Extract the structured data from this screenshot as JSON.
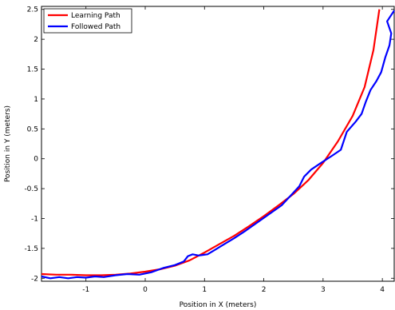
{
  "chart_data": {
    "type": "line",
    "xlabel": "Position in X (meters)",
    "ylabel": "Position in Y (meters)",
    "xlim": [
      -1.75,
      4.2
    ],
    "ylim": [
      -2.05,
      2.55
    ],
    "x_ticks": [
      -1,
      0,
      1,
      2,
      3,
      4
    ],
    "y_ticks": [
      -2,
      -1.5,
      -1,
      -0.5,
      0,
      0.5,
      1,
      1.5,
      2,
      2.5
    ],
    "grid": false,
    "legend_position": "top-left",
    "series": [
      {
        "name": "Learning Path",
        "color": "#ff0000",
        "points": [
          [
            -1.75,
            -1.93
          ],
          [
            -1.5,
            -1.94
          ],
          [
            -1.25,
            -1.94
          ],
          [
            -1.0,
            -1.95
          ],
          [
            -0.75,
            -1.95
          ],
          [
            -0.5,
            -1.94
          ],
          [
            -0.25,
            -1.92
          ],
          [
            0.0,
            -1.89
          ],
          [
            0.25,
            -1.85
          ],
          [
            0.5,
            -1.79
          ],
          [
            0.75,
            -1.7
          ],
          [
            1.0,
            -1.57
          ],
          [
            1.25,
            -1.43
          ],
          [
            1.5,
            -1.29
          ],
          [
            1.75,
            -1.13
          ],
          [
            2.0,
            -0.96
          ],
          [
            2.25,
            -0.78
          ],
          [
            2.5,
            -0.59
          ],
          [
            2.75,
            -0.36
          ],
          [
            3.0,
            -0.07
          ],
          [
            3.25,
            0.29
          ],
          [
            3.5,
            0.72
          ],
          [
            3.7,
            1.2
          ],
          [
            3.85,
            1.82
          ],
          [
            3.95,
            2.5
          ]
        ]
      },
      {
        "name": "Followed Path",
        "color": "#0000ff",
        "points": [
          [
            -1.75,
            -1.97
          ],
          [
            -1.6,
            -2.0
          ],
          [
            -1.45,
            -1.98
          ],
          [
            -1.3,
            -2.0
          ],
          [
            -1.15,
            -1.98
          ],
          [
            -1.0,
            -1.99
          ],
          [
            -0.85,
            -1.97
          ],
          [
            -0.7,
            -1.98
          ],
          [
            -0.5,
            -1.95
          ],
          [
            -0.3,
            -1.93
          ],
          [
            -0.1,
            -1.94
          ],
          [
            0.1,
            -1.9
          ],
          [
            0.3,
            -1.83
          ],
          [
            0.5,
            -1.78
          ],
          [
            0.65,
            -1.72
          ],
          [
            0.72,
            -1.63
          ],
          [
            0.8,
            -1.6
          ],
          [
            0.9,
            -1.62
          ],
          [
            1.05,
            -1.6
          ],
          [
            1.15,
            -1.54
          ],
          [
            1.3,
            -1.45
          ],
          [
            1.5,
            -1.33
          ],
          [
            1.7,
            -1.2
          ],
          [
            1.9,
            -1.06
          ],
          [
            2.1,
            -0.92
          ],
          [
            2.3,
            -0.78
          ],
          [
            2.45,
            -0.62
          ],
          [
            2.6,
            -0.46
          ],
          [
            2.68,
            -0.3
          ],
          [
            2.8,
            -0.18
          ],
          [
            2.95,
            -0.08
          ],
          [
            3.15,
            0.05
          ],
          [
            3.3,
            0.15
          ],
          [
            3.4,
            0.45
          ],
          [
            3.55,
            0.62
          ],
          [
            3.65,
            0.75
          ],
          [
            3.72,
            0.95
          ],
          [
            3.8,
            1.15
          ],
          [
            3.9,
            1.3
          ],
          [
            3.98,
            1.45
          ],
          [
            4.05,
            1.7
          ],
          [
            4.12,
            1.9
          ],
          [
            4.15,
            2.1
          ],
          [
            4.08,
            2.3
          ],
          [
            4.2,
            2.48
          ]
        ]
      }
    ]
  }
}
